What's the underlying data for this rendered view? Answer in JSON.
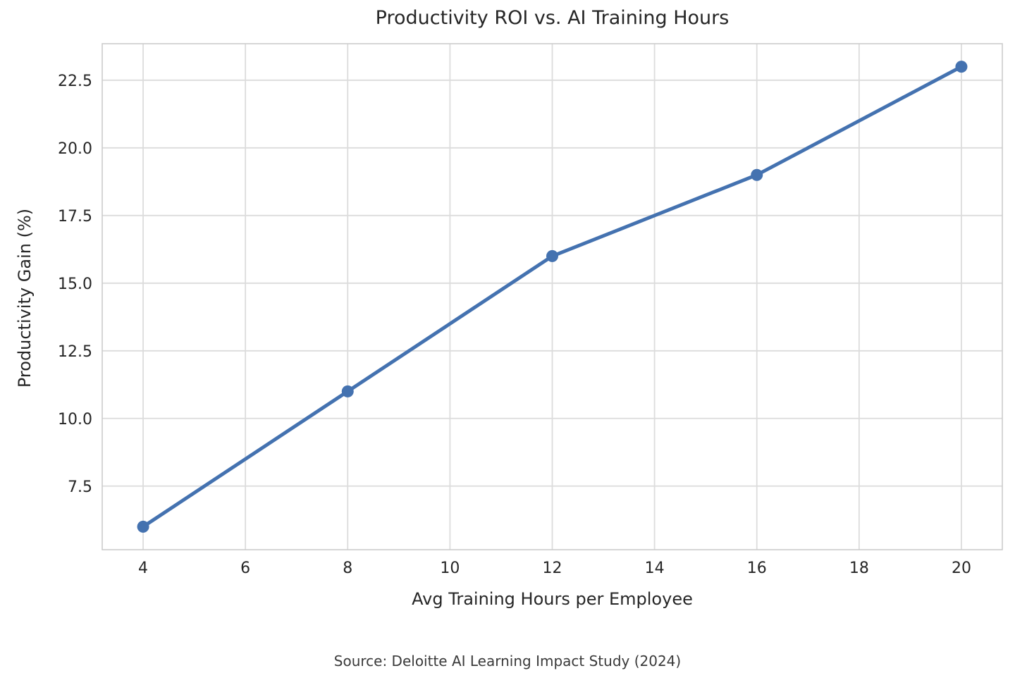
{
  "chart_data": {
    "type": "line",
    "title": "Productivity ROI vs. AI Training Hours",
    "xlabel": "Avg Training Hours per Employee",
    "ylabel": "Productivity Gain (%)",
    "x": [
      4,
      8,
      12,
      16,
      20
    ],
    "y": [
      6,
      11,
      16,
      19,
      23
    ],
    "series_name": "Productivity Gain (%)",
    "xticks": [
      4,
      6,
      8,
      10,
      12,
      14,
      16,
      18,
      20
    ],
    "yticks": [
      7.5,
      10.0,
      12.5,
      15.0,
      17.5,
      20.0,
      22.5
    ],
    "xlim": [
      3.2,
      20.8
    ],
    "ylim": [
      5.15,
      23.85
    ],
    "grid": true,
    "legend_position": "none",
    "marker": "circle",
    "source": "Source: Deloitte AI Learning Impact Study (2024)"
  },
  "colors": {
    "line": "#4472B0",
    "marker": "#4472B0",
    "grid": "#DCDCDC",
    "axis_border": "#CCCCCC",
    "text": "#262626",
    "background": "#FFFFFF"
  }
}
